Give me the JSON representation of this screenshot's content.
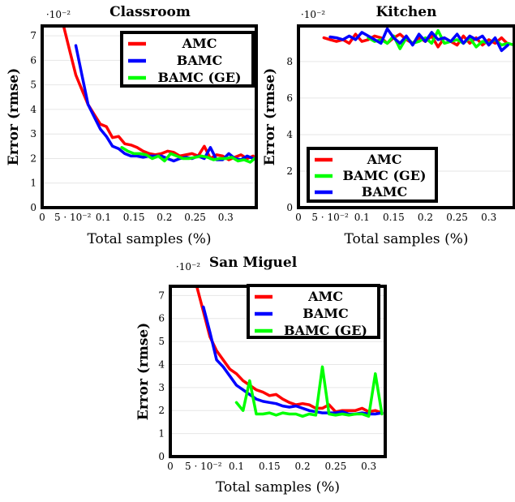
{
  "charts": [
    {
      "id": "classroom",
      "chart_data": {
        "type": "line",
        "title": "Classroom",
        "xlabel": "Total samples (%)",
        "ylabel": "Error (rmse)",
        "y_scale_label": "·10⁻²",
        "xlim": [
          0,
          0.35
        ],
        "ylim": [
          0,
          7.4
        ],
        "x_ticks": [
          0,
          0.05,
          0.1,
          0.15,
          0.2,
          0.25,
          0.3
        ],
        "x_tick_labels": [
          "0",
          "5 · 10⁻²",
          "0.1",
          "0.15",
          "0.2",
          "0.25",
          "0.3"
        ],
        "y_ticks": [
          0,
          1,
          2,
          3,
          4,
          5,
          6,
          7
        ],
        "y_tick_labels": [
          "0",
          "1",
          "2",
          "3",
          "4",
          "5",
          "6",
          "7"
        ],
        "grid": "horizontal",
        "legend_position": "top-right",
        "series": [
          {
            "name": "AMC",
            "color": "#ff0000",
            "x": [
              0.035,
              0.045,
              0.055,
              0.065,
              0.075,
              0.085,
              0.095,
              0.105,
              0.115,
              0.125,
              0.135,
              0.145,
              0.155,
              0.165,
              0.175,
              0.185,
              0.195,
              0.205,
              0.215,
              0.225,
              0.235,
              0.245,
              0.255,
              0.265,
              0.275,
              0.285,
              0.295,
              0.305,
              0.315,
              0.325,
              0.335,
              0.345
            ],
            "y": [
              7.4,
              6.4,
              5.4,
              4.8,
              4.2,
              3.8,
              3.4,
              3.3,
              2.85,
              2.9,
              2.6,
              2.55,
              2.45,
              2.3,
              2.2,
              2.15,
              2.2,
              2.3,
              2.25,
              2.1,
              2.15,
              2.2,
              2.1,
              2.5,
              2.0,
              2.15,
              2.1,
              1.95,
              2.05,
              2.15,
              2.0,
              2.1
            ]
          },
          {
            "name": "BAMC",
            "color": "#0000ff",
            "x": [
              0.055,
              0.065,
              0.075,
              0.085,
              0.095,
              0.105,
              0.115,
              0.125,
              0.135,
              0.145,
              0.155,
              0.165,
              0.175,
              0.185,
              0.195,
              0.205,
              0.215,
              0.225,
              0.235,
              0.245,
              0.255,
              0.265,
              0.275,
              0.285,
              0.295,
              0.305,
              0.315,
              0.325,
              0.335,
              0.345
            ],
            "y": [
              6.6,
              5.4,
              4.2,
              3.7,
              3.2,
              2.9,
              2.5,
              2.4,
              2.2,
              2.1,
              2.1,
              2.05,
              2.1,
              2.1,
              2.1,
              2.0,
              1.9,
              2.0,
              2.05,
              2.0,
              2.1,
              2.0,
              2.45,
              1.95,
              1.95,
              2.2,
              2.0,
              1.95,
              2.1,
              2.0
            ]
          },
          {
            "name": "BAMC (GE)",
            "color": "#00ff00",
            "x": [
              0.13,
              0.14,
              0.15,
              0.16,
              0.17,
              0.18,
              0.19,
              0.2,
              0.21,
              0.22,
              0.23,
              0.24,
              0.25,
              0.26,
              0.27,
              0.28,
              0.29,
              0.3,
              0.31,
              0.32,
              0.33,
              0.34,
              0.35
            ],
            "y": [
              2.45,
              2.3,
              2.2,
              2.2,
              2.15,
              2.0,
              2.1,
              1.9,
              2.2,
              2.1,
              2.0,
              2.0,
              2.05,
              2.1,
              2.05,
              1.95,
              2.0,
              2.0,
              2.05,
              1.9,
              1.95,
              1.85,
              2.05
            ]
          }
        ]
      }
    },
    {
      "id": "kitchen",
      "chart_data": {
        "type": "line",
        "title": "Kitchen",
        "xlabel": "Total samples (%)",
        "ylabel": "Error (rmse)",
        "y_scale_label": "·10⁻²",
        "xlim": [
          0,
          0.34
        ],
        "ylim": [
          0,
          9.95
        ],
        "x_ticks": [
          0,
          0.05,
          0.1,
          0.15,
          0.2,
          0.25,
          0.3
        ],
        "x_tick_labels": [
          "0",
          "5 · 10⁻²",
          "0.1",
          "0.15",
          "0.2",
          "0.25",
          "0.3"
        ],
        "y_ticks": [
          0,
          2,
          4,
          6,
          8
        ],
        "y_tick_labels": [
          "0",
          "2",
          "4",
          "6",
          "8"
        ],
        "grid": "horizontal",
        "legend_position": "bottom-left",
        "series": [
          {
            "name": "AMC",
            "color": "#ff0000",
            "x": [
              0.04,
              0.05,
              0.06,
              0.07,
              0.08,
              0.09,
              0.1,
              0.11,
              0.12,
              0.13,
              0.14,
              0.15,
              0.16,
              0.17,
              0.18,
              0.19,
              0.2,
              0.21,
              0.22,
              0.23,
              0.24,
              0.25,
              0.26,
              0.27,
              0.28,
              0.29,
              0.3,
              0.31,
              0.32,
              0.33
            ],
            "y": [
              9.3,
              9.2,
              9.1,
              9.2,
              9.0,
              9.5,
              9.1,
              9.2,
              9.4,
              9.3,
              9.0,
              9.3,
              9.5,
              9.2,
              9.0,
              9.3,
              9.1,
              9.4,
              8.8,
              9.3,
              9.1,
              8.9,
              9.4,
              9.0,
              9.3,
              8.9,
              9.2,
              9.0,
              9.3,
              8.95
            ]
          },
          {
            "name": "BAMC (GE)",
            "color": "#00ff00",
            "x": [
              0.11,
              0.12,
              0.13,
              0.14,
              0.15,
              0.16,
              0.17,
              0.18,
              0.19,
              0.2,
              0.21,
              0.22,
              0.23,
              0.24,
              0.25,
              0.26,
              0.27,
              0.28,
              0.29,
              0.3,
              0.31,
              0.32,
              0.33,
              0.34
            ],
            "y": [
              9.3,
              9.1,
              9.2,
              9.0,
              9.4,
              8.7,
              9.3,
              9.0,
              9.1,
              9.3,
              9.0,
              9.7,
              9.0,
              9.1,
              9.2,
              9.0,
              9.3,
              8.8,
              9.1,
              9.0,
              9.2,
              8.9,
              9.0,
              8.9
            ]
          },
          {
            "name": "BAMC",
            "color": "#0000ff",
            "x": [
              0.05,
              0.06,
              0.07,
              0.08,
              0.09,
              0.1,
              0.11,
              0.12,
              0.13,
              0.14,
              0.15,
              0.16,
              0.17,
              0.18,
              0.19,
              0.2,
              0.21,
              0.22,
              0.23,
              0.24,
              0.25,
              0.26,
              0.27,
              0.28,
              0.29,
              0.3,
              0.31,
              0.32,
              0.33
            ],
            "y": [
              9.35,
              9.3,
              9.2,
              9.4,
              9.2,
              9.6,
              9.4,
              9.2,
              9.0,
              9.8,
              9.3,
              9.0,
              9.4,
              8.9,
              9.5,
              9.1,
              9.6,
              9.2,
              9.3,
              9.1,
              9.5,
              9.0,
              9.4,
              9.2,
              9.4,
              8.9,
              9.3,
              8.6,
              8.9
            ]
          }
        ]
      }
    },
    {
      "id": "san-miguel",
      "chart_data": {
        "type": "line",
        "title": "San Miguel",
        "xlabel": "Total samples (%)",
        "ylabel": "Error (rmse)",
        "y_scale_label": "·10⁻²",
        "xlim": [
          0,
          0.325
        ],
        "ylim": [
          0,
          7.4
        ],
        "x_ticks": [
          0,
          0.05,
          0.1,
          0.15,
          0.2,
          0.25,
          0.3
        ],
        "x_tick_labels": [
          "0",
          "5 · 10⁻²",
          "0.1",
          "0.15",
          "0.2",
          "0.25",
          "0.3"
        ],
        "y_ticks": [
          0,
          1,
          2,
          3,
          4,
          5,
          6,
          7
        ],
        "y_tick_labels": [
          "0",
          "1",
          "2",
          "3",
          "4",
          "5",
          "6",
          "7"
        ],
        "grid": "horizontal",
        "legend_position": "top-right",
        "series": [
          {
            "name": "AMC",
            "color": "#ff0000",
            "x": [
              0.04,
              0.05,
              0.06,
              0.07,
              0.08,
              0.09,
              0.1,
              0.11,
              0.12,
              0.13,
              0.14,
              0.15,
              0.16,
              0.17,
              0.18,
              0.19,
              0.2,
              0.21,
              0.22,
              0.23,
              0.24,
              0.25,
              0.26,
              0.27,
              0.28,
              0.29,
              0.3,
              0.31,
              0.32
            ],
            "y": [
              7.4,
              6.3,
              5.2,
              4.6,
              4.2,
              3.8,
              3.6,
              3.3,
              3.1,
              2.9,
              2.8,
              2.65,
              2.7,
              2.5,
              2.35,
              2.25,
              2.3,
              2.25,
              2.1,
              2.1,
              2.25,
              1.95,
              2.0,
              2.0,
              2.0,
              2.1,
              1.95,
              2.0,
              1.9
            ]
          },
          {
            "name": "BAMC",
            "color": "#0000ff",
            "x": [
              0.05,
              0.06,
              0.07,
              0.08,
              0.09,
              0.1,
              0.11,
              0.12,
              0.13,
              0.14,
              0.15,
              0.16,
              0.17,
              0.18,
              0.19,
              0.2,
              0.21,
              0.22,
              0.23,
              0.24,
              0.25,
              0.26,
              0.27,
              0.28,
              0.29,
              0.3,
              0.31,
              0.32
            ],
            "y": [
              6.5,
              5.4,
              4.2,
              3.9,
              3.5,
              3.1,
              2.9,
              2.7,
              2.5,
              2.4,
              2.35,
              2.3,
              2.2,
              2.15,
              2.2,
              2.1,
              2.0,
              1.95,
              1.9,
              1.9,
              1.9,
              1.95,
              1.85,
              1.85,
              1.9,
              1.85,
              1.85,
              1.9
            ]
          },
          {
            "name": "BAMC (GE)",
            "color": "#00ff00",
            "x": [
              0.1,
              0.11,
              0.12,
              0.13,
              0.14,
              0.15,
              0.16,
              0.17,
              0.18,
              0.19,
              0.2,
              0.21,
              0.22,
              0.23,
              0.24,
              0.25,
              0.26,
              0.27,
              0.28,
              0.29,
              0.3,
              0.31,
              0.32
            ],
            "y": [
              2.35,
              2.0,
              3.3,
              1.85,
              1.85,
              1.9,
              1.8,
              1.9,
              1.85,
              1.85,
              1.75,
              1.85,
              1.8,
              3.9,
              1.85,
              1.8,
              1.85,
              1.8,
              1.85,
              1.85,
              1.75,
              3.6,
              1.85
            ]
          }
        ]
      }
    }
  ]
}
